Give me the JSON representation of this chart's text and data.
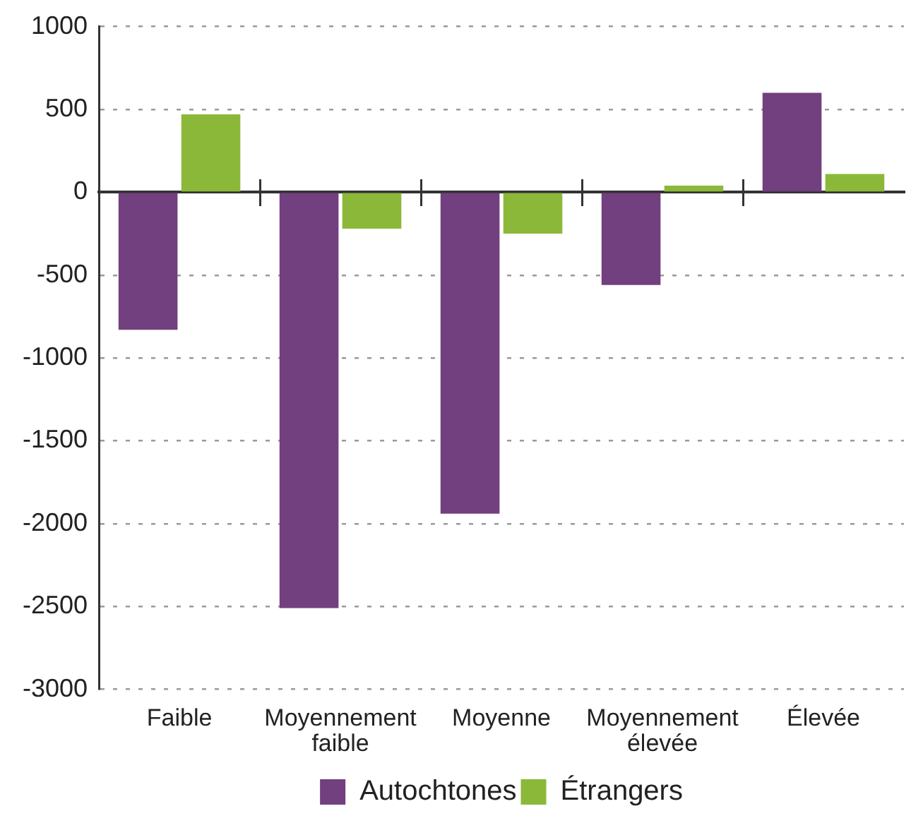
{
  "chart_data": {
    "type": "bar",
    "categories": [
      "Faible",
      "Moyennement faible",
      "Moyenne",
      "Moyennement élevée",
      "Élevée"
    ],
    "series": [
      {
        "name": "Autochtones",
        "color": "#723f7f",
        "values": [
          -830,
          -2510,
          -1940,
          -560,
          600
        ]
      },
      {
        "name": "Étrangers",
        "color": "#8cb83a",
        "values": [
          470,
          -220,
          -250,
          40,
          110
        ]
      }
    ],
    "ylim": [
      -3000,
      1000
    ],
    "yticks": [
      -3000,
      -2500,
      -2000,
      -1500,
      -1000,
      -500,
      0,
      500,
      1000
    ],
    "grid": "y",
    "legend": "bottom"
  }
}
